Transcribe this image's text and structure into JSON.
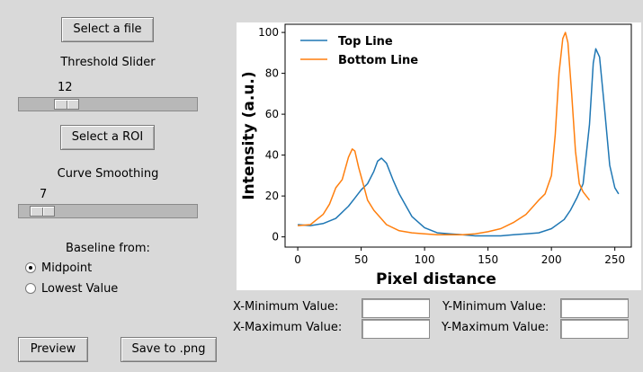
{
  "controls": {
    "select_file_label": "Select a file",
    "threshold_title": "Threshold Slider",
    "threshold_value": "12",
    "select_roi_label": "Select a ROI",
    "smoothing_title": "Curve Smoothing",
    "smoothing_value": "7",
    "baseline_title": "Baseline from:",
    "baseline_options": [
      "Midpoint",
      "Lowest Value"
    ],
    "baseline_selected": "Midpoint",
    "preview_label": "Preview",
    "save_label": "Save to .png"
  },
  "fields": {
    "x_min_label": "X-Minimum Value:",
    "x_max_label": "X-Maximum Value:",
    "y_min_label": "Y-Minimum Value:",
    "y_max_label": "Y-Maximum Value:",
    "x_min_value": "",
    "x_max_value": "",
    "y_min_value": "",
    "y_max_value": ""
  },
  "chart_data": {
    "type": "line",
    "title": "",
    "xlabel": "Pixel distance",
    "ylabel": "Intensity (a.u.)",
    "xlim": [
      -10,
      263
    ],
    "ylim": [
      -5,
      104
    ],
    "xticks": [
      0,
      50,
      100,
      150,
      200,
      250
    ],
    "yticks": [
      0,
      20,
      40,
      60,
      80,
      100
    ],
    "legend": "top-left",
    "grid": false,
    "series": [
      {
        "name": "Top Line",
        "color": "#1f77b4",
        "x": [
          0,
          10,
          20,
          30,
          40,
          45,
          50,
          55,
          60,
          63,
          66,
          70,
          75,
          80,
          90,
          100,
          110,
          120,
          130,
          140,
          150,
          160,
          170,
          180,
          190,
          200,
          210,
          215,
          220,
          225,
          230,
          233,
          235,
          238,
          242,
          246,
          250,
          253
        ],
        "y": [
          6,
          5.5,
          6.5,
          9,
          15,
          19,
          23,
          26,
          32,
          37,
          38.5,
          36,
          28,
          21,
          10,
          4.5,
          2,
          1.5,
          1,
          0.5,
          0.5,
          0.5,
          1,
          1.5,
          2,
          4,
          8.5,
          13,
          19,
          26,
          55,
          85,
          92,
          88,
          62,
          35,
          24,
          21
        ]
      },
      {
        "name": "Bottom Line",
        "color": "#ff7f0e",
        "x": [
          0,
          10,
          20,
          25,
          30,
          35,
          40,
          43,
          45,
          48,
          52,
          55,
          60,
          70,
          80,
          90,
          100,
          110,
          120,
          130,
          140,
          150,
          160,
          170,
          180,
          190,
          195,
          200,
          203,
          206,
          209,
          211,
          213,
          216,
          219,
          222,
          225,
          230
        ],
        "y": [
          5.5,
          6,
          11,
          16,
          24,
          28,
          39,
          43,
          42,
          34,
          25,
          18,
          13,
          6,
          3,
          2,
          1.5,
          1,
          1,
          1,
          1.5,
          2.5,
          4,
          7,
          11,
          18,
          21,
          30,
          50,
          80,
          97,
          100,
          95,
          70,
          42,
          26,
          22,
          18
        ]
      }
    ]
  }
}
